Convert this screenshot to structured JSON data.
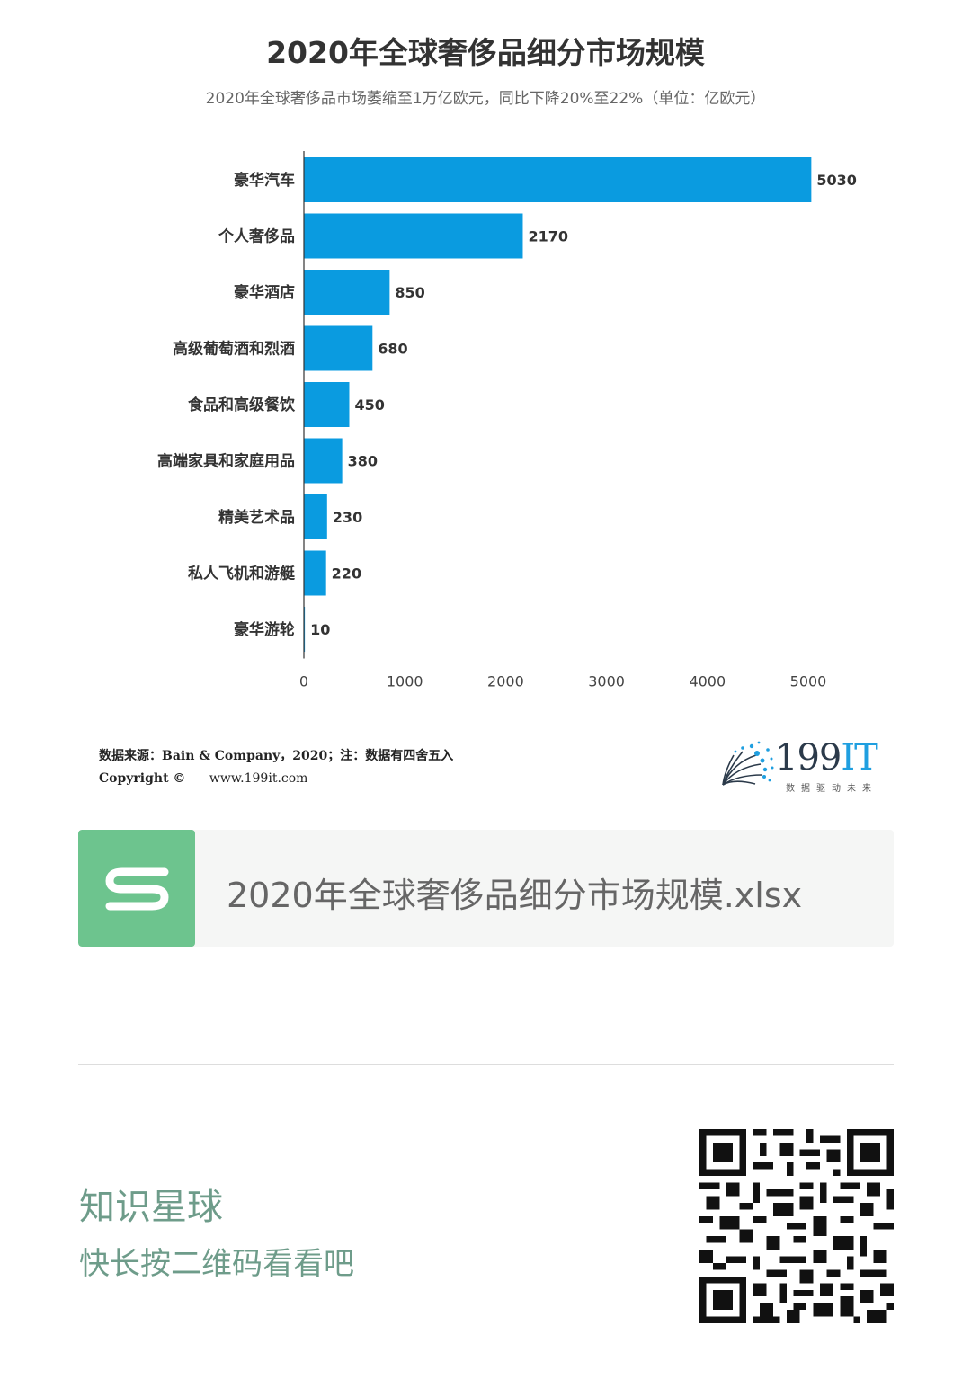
{
  "chart_data": {
    "type": "bar",
    "orientation": "horizontal",
    "title": "2020年全球奢侈品细分市场规模",
    "subtitle": "2020年全球奢侈品市场萎缩至1万亿欧元，同比下降20%至22%（单位：亿欧元）",
    "categories": [
      "豪华汽车",
      "个人奢侈品",
      "豪华酒店",
      "高级葡萄酒和烈酒",
      "食品和高级餐饮",
      "高端家具和家庭用品",
      "精美艺术品",
      "私人飞机和游艇",
      "豪华游轮"
    ],
    "values": [
      5030,
      2170,
      850,
      680,
      450,
      380,
      230,
      220,
      10
    ],
    "xlim": [
      0,
      5000
    ],
    "xticks": [
      0,
      1000,
      2000,
      3000,
      4000,
      5000
    ],
    "bar_color": "#0a9be0",
    "grid": false
  },
  "footer": {
    "source": "数据来源：Bain & Company，2020；注：数据有四舍五入",
    "copyright_label": "Copyright ©",
    "website": "www.199it.com",
    "logo_text": "199",
    "logo_it": "IT",
    "logo_slogan": "数据驱动未来"
  },
  "file_card": {
    "icon": "spreadsheet-s-icon",
    "filename": "2020年全球奢侈品细分市场规模.xlsx",
    "icon_color": "#6dc48e"
  },
  "promo": {
    "title": "知识星球",
    "subtitle": "快长按二维码看看吧",
    "qr_icon": "qr-code-icon"
  }
}
